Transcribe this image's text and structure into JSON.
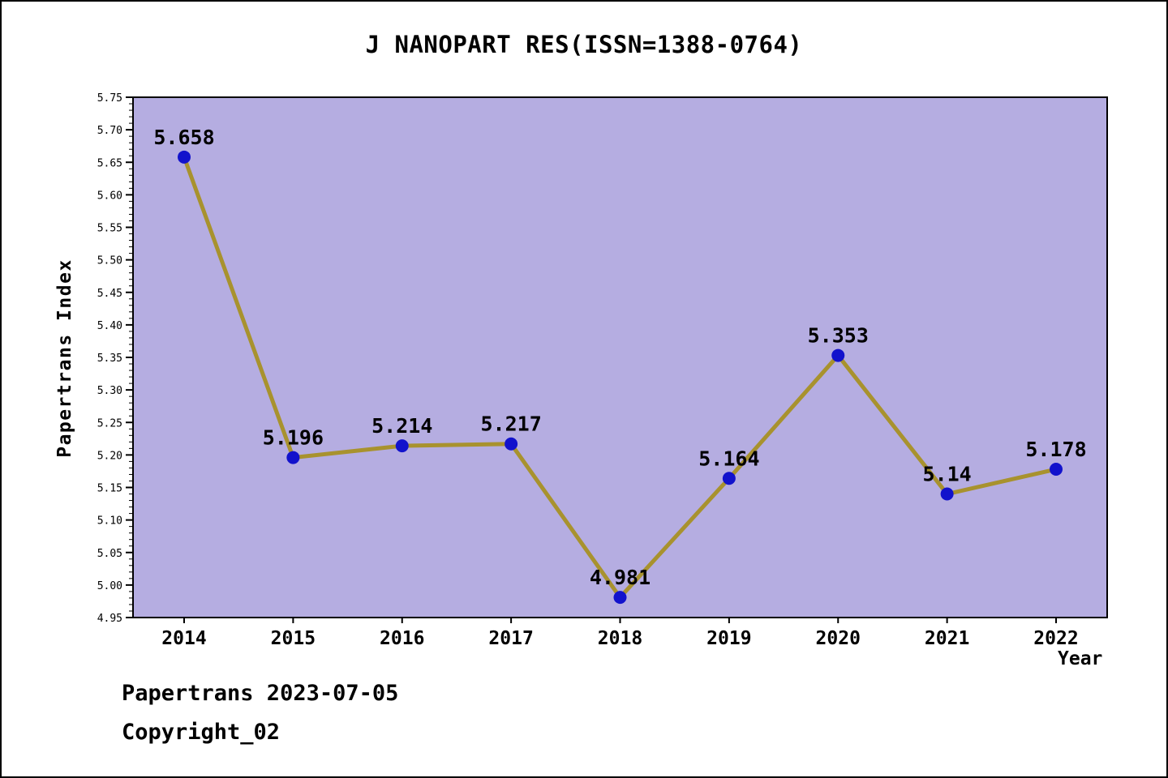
{
  "page": {
    "footer_line1": "Papertrans 2023-07-05",
    "footer_line2": "Copyright_02"
  },
  "chart_data": {
    "type": "line",
    "title": "J NANOPART RES(ISSN=1388-0764)",
    "xlabel": "Year",
    "ylabel": "Papertrans Index",
    "categories": [
      "2014",
      "2015",
      "2016",
      "2017",
      "2018",
      "2019",
      "2020",
      "2021",
      "2022"
    ],
    "series": [
      {
        "name": "Papertrans Index",
        "values": [
          5.658,
          5.196,
          5.214,
          5.217,
          4.981,
          5.164,
          5.353,
          5.14,
          5.178
        ]
      }
    ],
    "point_labels": [
      "5.658",
      "5.196",
      "5.214",
      "5.217",
      "4.981",
      "5.164",
      "5.353",
      "5.14",
      "5.178"
    ],
    "ylim": [
      4.95,
      5.75
    ],
    "ytick_step": 0.05,
    "ytick_minor_step": 0.01,
    "grid": false,
    "legend": "none",
    "colors": {
      "line": "#a8922e",
      "marker": "#1212cc",
      "plot_bg": "#b5ade1",
      "axis": "#000000",
      "text": "#000000"
    }
  }
}
